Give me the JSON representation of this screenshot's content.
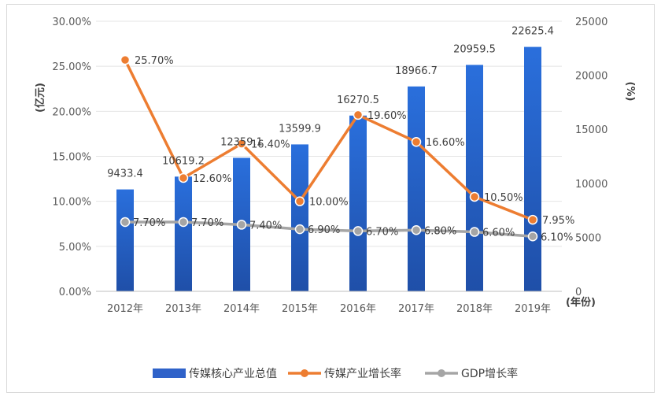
{
  "chart_data": {
    "type": "bar",
    "categories": [
      "2012年",
      "2013年",
      "2014年",
      "2015年",
      "2016年",
      "2017年",
      "2018年",
      "2019年"
    ],
    "series": [
      {
        "name": "传媒核心产业总值",
        "type": "bar",
        "axis": "right",
        "values": [
          9433.4,
          10619.2,
          12359.1,
          13599.9,
          16270.5,
          18966.7,
          20959.5,
          22625.4
        ],
        "labels": [
          "9433.4",
          "10619.2",
          "12359.1",
          "13599.9",
          "16270.5",
          "18966.7",
          "20959.5",
          "22625.4"
        ],
        "color": "#2f62c9"
      },
      {
        "name": "传媒产业增长率",
        "type": "line",
        "axis": "left",
        "values": [
          25.7,
          12.6,
          16.4,
          10.0,
          19.6,
          16.6,
          10.5,
          7.95
        ],
        "labels": [
          "25.70%",
          "12.60%",
          "16.40%",
          "10.00%",
          "19.60%",
          "16.60%",
          "10.50%",
          "7.95%"
        ],
        "color": "#ed7d31"
      },
      {
        "name": "GDP增长率",
        "type": "line",
        "axis": "left",
        "values": [
          7.7,
          7.7,
          7.4,
          6.9,
          6.7,
          6.8,
          6.6,
          6.1
        ],
        "labels": [
          "7.70%",
          "7.70%",
          "7.40%",
          "6.90%",
          "6.70%",
          "6.80%",
          "6.60%",
          "6.10%"
        ],
        "color": "#a5a5a5"
      }
    ],
    "left_axis": {
      "title": "(亿元)",
      "ylim": [
        0,
        30
      ],
      "ticks": [
        "0.00%",
        "5.00%",
        "10.00%",
        "15.00%",
        "20.00%",
        "25.00%",
        "30.00%"
      ],
      "tick_values": [
        0,
        5,
        10,
        15,
        20,
        25,
        30
      ]
    },
    "right_axis": {
      "title": "(%)",
      "ylim": [
        0,
        25000
      ],
      "ticks": [
        "0",
        "5000",
        "10000",
        "15000",
        "20000",
        "25000"
      ],
      "tick_values": [
        0,
        5000,
        10000,
        15000,
        20000,
        25000
      ]
    },
    "x_axis_unit": "(年份)",
    "grid": true,
    "legend_position": "bottom"
  }
}
